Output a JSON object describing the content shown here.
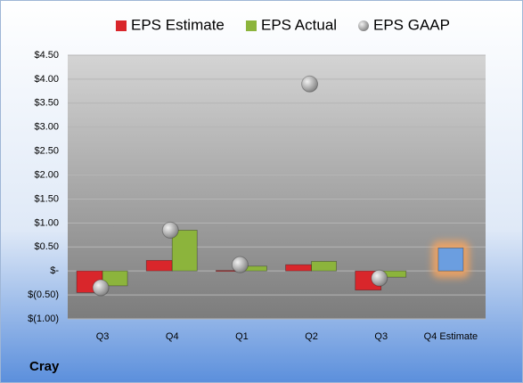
{
  "chart_data": {
    "type": "bar",
    "company": "Cray",
    "categories": [
      "Q3",
      "Q4",
      "Q1",
      "Q2",
      "Q3",
      "Q4 Estimate"
    ],
    "series": [
      {
        "name": "EPS Estimate",
        "color": "#d9262b",
        "values": [
          -0.45,
          0.22,
          0.01,
          0.13,
          -0.4,
          0.48
        ]
      },
      {
        "name": "EPS Actual",
        "color": "#8cb43c",
        "values": [
          -0.31,
          0.85,
          0.1,
          0.2,
          -0.13,
          null
        ]
      },
      {
        "name": "EPS GAAP",
        "color": "#a6a6a6",
        "values": [
          -0.35,
          0.85,
          0.13,
          3.9,
          -0.15,
          null
        ]
      }
    ],
    "estimate_color": "#6b9ee0",
    "estimate_glow": "#f4a460",
    "ylim": [
      -1,
      4.5
    ],
    "yticks": [
      {
        "value": 4.5,
        "label": "$4.50"
      },
      {
        "value": 4,
        "label": "$4.00"
      },
      {
        "value": 3.5,
        "label": "$3.50"
      },
      {
        "value": 3,
        "label": "$3.00"
      },
      {
        "value": 2.5,
        "label": "$2.50"
      },
      {
        "value": 2,
        "label": "$2.00"
      },
      {
        "value": 1.5,
        "label": "$1.50"
      },
      {
        "value": 1,
        "label": "$1.00"
      },
      {
        "value": 0.5,
        "label": "$0.50"
      },
      {
        "value": 0,
        "label": "$-"
      },
      {
        "value": -0.5,
        "label": "$(0.50)"
      },
      {
        "value": -1,
        "label": "$(1.00)"
      }
    ],
    "grid": true
  }
}
